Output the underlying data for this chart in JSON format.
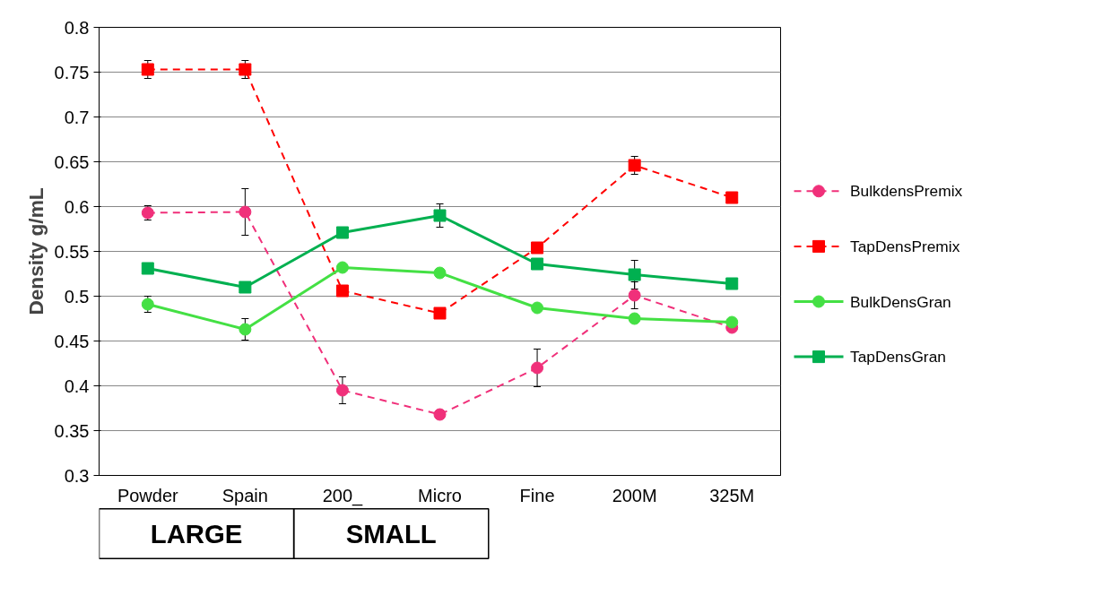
{
  "chart_data": {
    "type": "line",
    "ylabel": "Density g/mL",
    "categories": [
      "Powder",
      "Spain",
      "200_",
      "Micro",
      "Fine",
      "200M",
      "325M"
    ],
    "series": [
      {
        "name": "BulkdensPremix",
        "color": "#f0307a",
        "marker": "circle",
        "line_style": "dashed",
        "values": [
          0.593,
          0.594,
          0.395,
          0.368,
          0.42,
          0.501,
          0.465
        ],
        "errors": [
          0.008,
          0.026,
          0.015,
          null,
          0.021,
          0.015,
          null
        ]
      },
      {
        "name": "TapDensPremix",
        "color": "#ff0000",
        "marker": "square",
        "line_style": "dashed",
        "values": [
          0.753,
          0.753,
          0.506,
          0.481,
          0.554,
          0.646,
          0.61
        ],
        "errors": [
          0.01,
          0.01,
          null,
          null,
          null,
          0.01,
          null
        ]
      },
      {
        "name": "BulkDensGran",
        "color": "#44e044",
        "marker": "circle",
        "line_style": "solid",
        "values": [
          0.491,
          0.463,
          0.532,
          0.526,
          0.487,
          0.475,
          0.471
        ],
        "errors": [
          0.009,
          0.012,
          null,
          null,
          null,
          null,
          null
        ]
      },
      {
        "name": "TapDensGran",
        "color": "#00b050",
        "marker": "square",
        "line_style": "solid",
        "values": [
          0.531,
          0.51,
          0.571,
          0.59,
          0.536,
          0.524,
          0.514
        ],
        "errors": [
          null,
          null,
          null,
          0.013,
          null,
          0.016,
          null
        ]
      }
    ],
    "ylim": [
      0.3,
      0.8
    ],
    "yticks": [
      0.3,
      0.35,
      0.4,
      0.45,
      0.5,
      0.55,
      0.6,
      0.65,
      0.7,
      0.75,
      0.8
    ],
    "grid": "y",
    "legend": "right",
    "annotations": [
      "LARGE",
      "SMALL"
    ]
  }
}
